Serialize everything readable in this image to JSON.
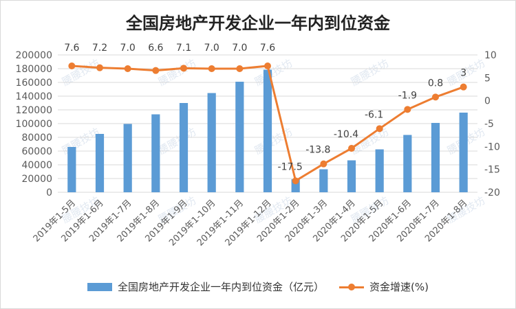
{
  "chart_data": {
    "type": "bar+line",
    "title": "全国房地产开发企业一年内到位资金",
    "categories": [
      "2019年1-5月",
      "2019年1-6月",
      "2019年1-7月",
      "2019年1-8月",
      "2019年1-9月",
      "2019年1-10月",
      "2019年1-11月",
      "2019年1-12月",
      "2020年1-2月",
      "2020年1-3月",
      "2020年1-4月",
      "2020年1-5月",
      "2020年1-6月",
      "2020年1-7月",
      "2020年1-8月"
    ],
    "series": [
      {
        "name": "全国房地产开发企业一年内到位资金（亿元）",
        "type": "bar",
        "axis": "left",
        "values": [
          66000,
          85000,
          99500,
          113500,
          130000,
          144500,
          161000,
          178500,
          19000,
          33500,
          46500,
          62500,
          83500,
          101000,
          116000
        ]
      },
      {
        "name": "资金增速(%)",
        "type": "line",
        "axis": "right",
        "values": [
          7.6,
          7.2,
          7.0,
          6.6,
          7.1,
          7.0,
          7.0,
          7.6,
          -17.5,
          -13.8,
          -10.4,
          -6.1,
          -1.9,
          0.8,
          3
        ],
        "labels": [
          "7.6",
          "7.2",
          "7.0",
          "6.6",
          "7.1",
          "7.0",
          "7.0",
          "7.6",
          "-17.5",
          "-13.8",
          "-10.4",
          "-6.1",
          "-1.9",
          "0.8",
          "3"
        ]
      }
    ],
    "y_left": {
      "min": 0,
      "max": 200000,
      "step": 20000,
      "ticks": [
        "0",
        "20000",
        "40000",
        "60000",
        "80000",
        "100000",
        "120000",
        "140000",
        "160000",
        "180000",
        "200000"
      ]
    },
    "y_right": {
      "min": -20,
      "max": 10,
      "step": 5,
      "ticks": [
        "-20",
        "-15",
        "-10",
        "-5",
        "0",
        "5",
        "10"
      ]
    },
    "grid": true,
    "legend_position": "bottom",
    "colors": {
      "bar": "#5b9bd5",
      "line": "#ed7d31",
      "grid": "#d9d9d9",
      "text": "#595959"
    },
    "watermark": "腰腰技坊"
  }
}
